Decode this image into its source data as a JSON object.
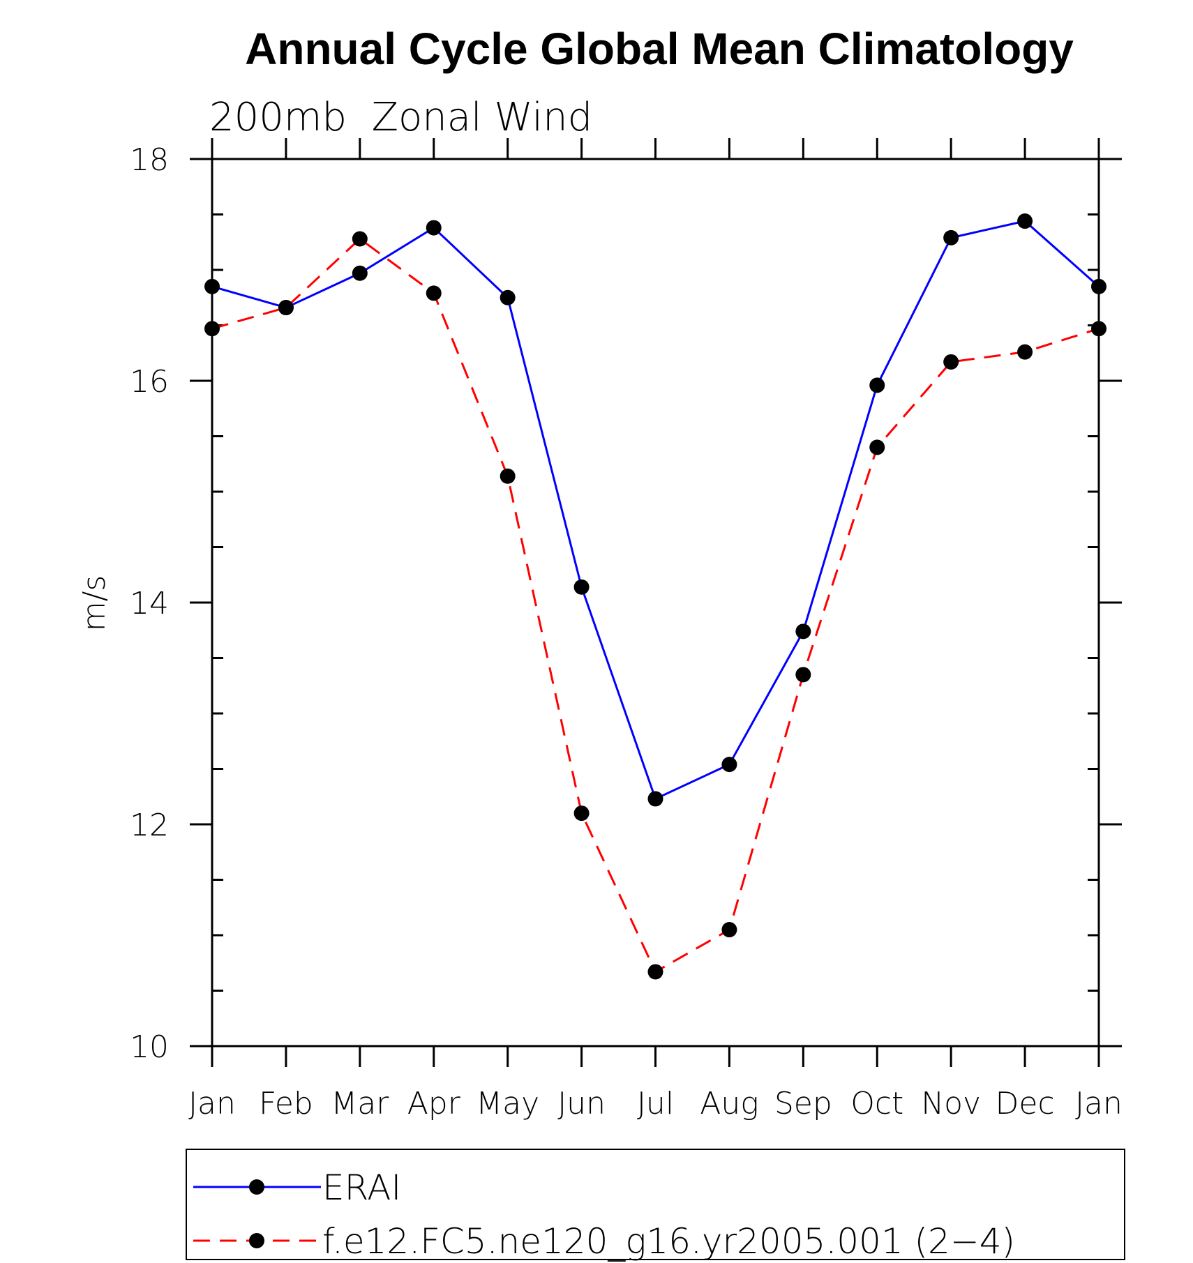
{
  "chart_data": {
    "type": "line",
    "title": "Annual Cycle Global Mean Climatology",
    "subtitle": "200mb  Zonal Wind",
    "ylabel": "m/s",
    "xlabel": "",
    "ylim": [
      10,
      18
    ],
    "yticks": [
      "10",
      "12",
      "14",
      "16",
      "18"
    ],
    "categories": [
      "Jan",
      "Feb",
      "Mar",
      "Apr",
      "May",
      "Jun",
      "Jul",
      "Aug",
      "Sep",
      "Oct",
      "Nov",
      "Dec",
      "Jan"
    ],
    "series": [
      {
        "name": "ERAI",
        "color": "#0000ff",
        "dash": "solid",
        "marker": "filled-circle",
        "values": [
          16.85,
          16.66,
          16.97,
          17.38,
          16.75,
          14.14,
          12.23,
          12.54,
          13.74,
          15.96,
          17.29,
          17.44,
          16.85
        ]
      },
      {
        "name": "f.e12.FC5.ne120_g16.yr2005.001 (2−4)",
        "color": "#ff0000",
        "dash": "dashed",
        "marker": "filled-circle",
        "values": [
          16.47,
          16.66,
          17.28,
          16.79,
          15.14,
          12.1,
          10.67,
          11.05,
          13.35,
          15.4,
          16.17,
          16.26,
          16.47
        ]
      }
    ],
    "legend": "bottom",
    "grid": false
  }
}
